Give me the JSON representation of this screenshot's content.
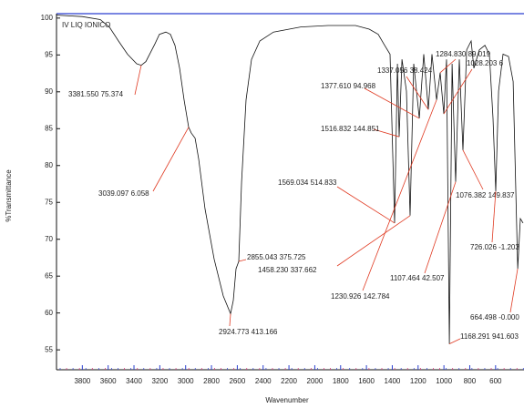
{
  "chart_data": {
    "type": "line",
    "title": "IV LIQ IONICO",
    "xlabel": "Wavenumber",
    "ylabel": "%Transmittance",
    "color": "#111111",
    "annotation_color": "#e03a22",
    "xlim": [
      4000,
      380
    ],
    "ylim": [
      52.3,
      100.6
    ],
    "xticks": [
      3800,
      3600,
      3400,
      3200,
      3000,
      2800,
      2600,
      2400,
      2200,
      2000,
      1800,
      1600,
      1400,
      1200,
      1000,
      800,
      600
    ],
    "yticks": [
      55,
      60,
      65,
      70,
      75,
      80,
      85,
      90,
      95,
      100
    ],
    "x": [
      4000,
      3802,
      3661,
      3591,
      3520,
      3450,
      3379,
      3344,
      3308,
      3238,
      3203,
      3153,
      3118,
      3083,
      3047,
      3012,
      2977,
      2956,
      2927,
      2899,
      2850,
      2779,
      2709,
      2652,
      2631,
      2610,
      2589,
      2567,
      2532,
      2490,
      2426,
      2320,
      2109,
      1897,
      1685,
      1579,
      1509,
      1459,
      1417,
      1382,
      1360,
      1347,
      1325,
      1290,
      1262,
      1234,
      1191,
      1156,
      1121,
      1093,
      1057,
      1029,
      1001,
      980,
      958,
      937,
      909,
      881,
      853,
      824,
      789,
      768,
      726,
      683,
      648,
      620,
      599,
      577,
      542,
      500,
      464,
      429,
      408,
      387
    ],
    "values": [
      100.4,
      100.2,
      99.8,
      98.8,
      96.9,
      95.1,
      93.8,
      93.6,
      94.1,
      96.5,
      97.8,
      98.1,
      97.8,
      96.3,
      93.2,
      88.9,
      85.2,
      84.4,
      83.7,
      80.9,
      74.1,
      67.3,
      62.3,
      59.9,
      61.7,
      66.0,
      67.0,
      77.8,
      88.9,
      94.4,
      96.9,
      98.1,
      98.8,
      99.0,
      99.0,
      98.5,
      97.8,
      96.3,
      95.1,
      72.2,
      93.8,
      83.9,
      94.4,
      90.1,
      73.2,
      93.8,
      86.4,
      95.1,
      87.6,
      95.1,
      88.9,
      92.6,
      87.0,
      94.4,
      55.8,
      93.8,
      77.8,
      94.4,
      82.1,
      95.7,
      96.9,
      93.2,
      95.7,
      96.3,
      95.1,
      86.4,
      76.5,
      90.1,
      95.1,
      94.8,
      91.4,
      66.0,
      72.8,
      72.2
    ],
    "annotations": [
      {
        "text": "3381.550  75.374",
        "x": 3344,
        "y": 93.6
      },
      {
        "text": "3039.097  6.058",
        "x": 2977,
        "y": 85.2
      },
      {
        "text": "2924.773  413.166",
        "x": 2652,
        "y": 59.9
      },
      {
        "text": "2855.043  375.725",
        "x": 2589,
        "y": 67.0
      },
      {
        "text": "1337.056  38.424",
        "x": 1121,
        "y": 87.6
      },
      {
        "text": "1377.610  94.968",
        "x": 1191,
        "y": 86.4
      },
      {
        "text": "1284.830  89.019",
        "x": 1029,
        "y": 92.6
      },
      {
        "text": "1028.203  6",
        "x": 1001,
        "y": 87.0
      },
      {
        "text": "1516.832  144.851",
        "x": 1347,
        "y": 83.9
      },
      {
        "text": "1569.034  514.833",
        "x": 1382,
        "y": 72.2
      },
      {
        "text": "1458.230  337.662",
        "x": 1262,
        "y": 73.2
      },
      {
        "text": "1230.926  142.784",
        "x": 1057,
        "y": 88.9
      },
      {
        "text": "1107.464  42.507",
        "x": 909,
        "y": 77.8
      },
      {
        "text": "1076.382  149.837",
        "x": 853,
        "y": 82.1
      },
      {
        "text": "1168.291  941.603",
        "x": 958,
        "y": 55.8
      },
      {
        "text": "726.026  -1.203",
        "x": 599,
        "y": 76.5
      },
      {
        "text": "664.498  -0.000",
        "x": 429,
        "y": 66.0
      }
    ]
  }
}
